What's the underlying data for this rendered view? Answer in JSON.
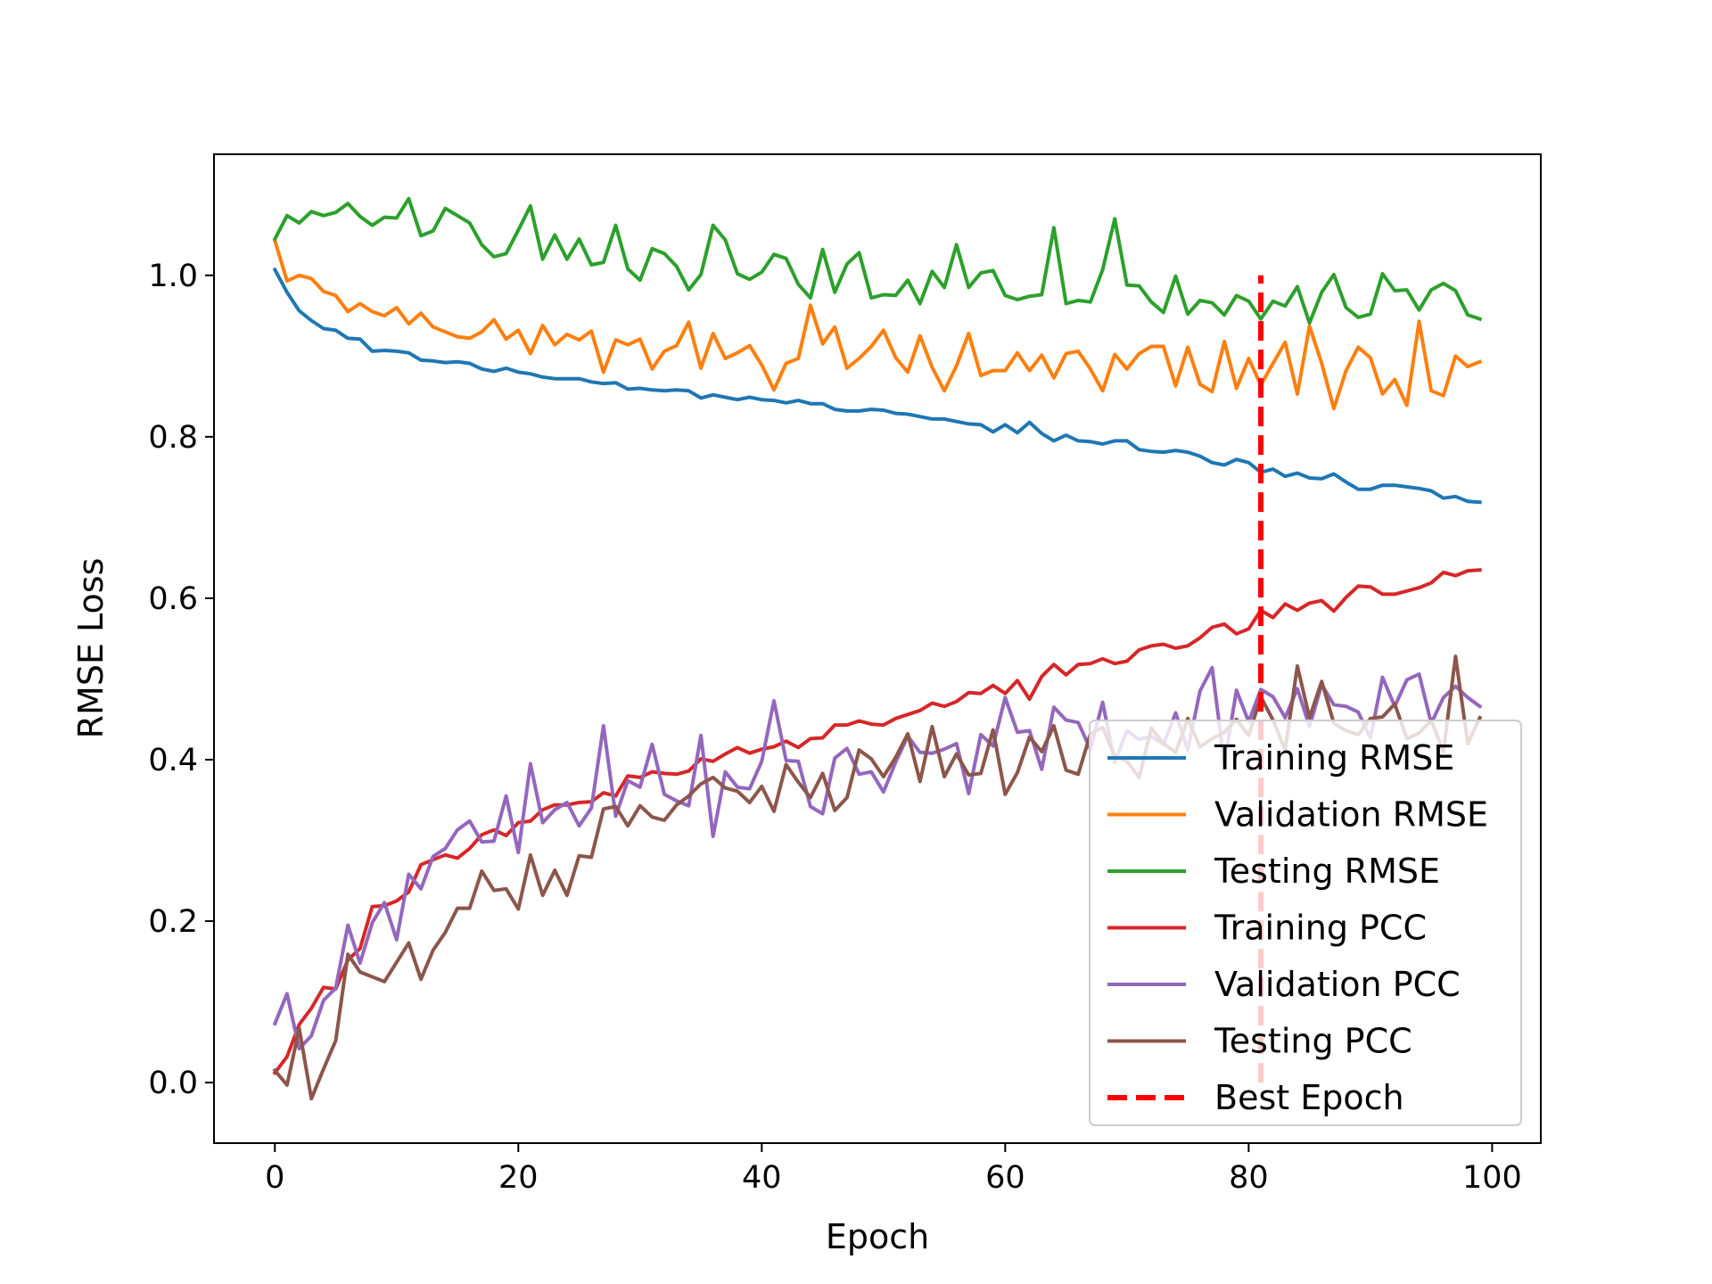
{
  "chart_data": {
    "type": "line",
    "title": "",
    "xlabel": "Epoch",
    "ylabel": "RMSE Loss",
    "xlim": [
      -5,
      104
    ],
    "ylim": [
      -0.075,
      1.15
    ],
    "xticks": [
      0,
      20,
      40,
      60,
      80,
      100
    ],
    "yticks": [
      0.0,
      0.2,
      0.4,
      0.6,
      0.8,
      1.0
    ],
    "grid": false,
    "legend_position": "lower-right",
    "best_epoch": 81,
    "best_epoch_label": "Best Epoch",
    "best_epoch_color": "#ff0000",
    "series": [
      {
        "name": "Training RMSE",
        "color": "#1f77b4",
        "values": [
          1.007,
          0.979,
          0.956,
          0.944,
          0.934,
          0.932,
          0.922,
          0.921,
          0.906,
          0.907,
          0.906,
          0.904,
          0.895,
          0.894,
          0.892,
          0.893,
          0.891,
          0.884,
          0.881,
          0.885,
          0.88,
          0.878,
          0.874,
          0.872,
          0.872,
          0.872,
          0.868,
          0.866,
          0.867,
          0.859,
          0.86,
          0.858,
          0.857,
          0.858,
          0.857,
          0.848,
          0.852,
          0.849,
          0.846,
          0.849,
          0.846,
          0.845,
          0.842,
          0.845,
          0.841,
          0.841,
          0.834,
          0.832,
          0.832,
          0.834,
          0.833,
          0.829,
          0.828,
          0.825,
          0.822,
          0.822,
          0.819,
          0.816,
          0.815,
          0.806,
          0.815,
          0.805,
          0.818,
          0.804,
          0.795,
          0.802,
          0.795,
          0.794,
          0.791,
          0.795,
          0.795,
          0.784,
          0.782,
          0.781,
          0.783,
          0.781,
          0.776,
          0.768,
          0.765,
          0.772,
          0.768,
          0.756,
          0.76,
          0.751,
          0.755,
          0.749,
          0.748,
          0.754,
          0.744,
          0.735,
          0.735,
          0.74,
          0.74,
          0.738,
          0.736,
          0.733,
          0.724,
          0.726,
          0.72,
          0.719
        ]
      },
      {
        "name": "Validation RMSE",
        "color": "#ff7f0e",
        "values": [
          1.043,
          0.993,
          1.0,
          0.996,
          0.98,
          0.975,
          0.955,
          0.965,
          0.955,
          0.95,
          0.96,
          0.94,
          0.953,
          0.936,
          0.93,
          0.924,
          0.922,
          0.93,
          0.945,
          0.921,
          0.932,
          0.903,
          0.938,
          0.914,
          0.927,
          0.92,
          0.931,
          0.88,
          0.92,
          0.914,
          0.921,
          0.884,
          0.906,
          0.913,
          0.942,
          0.885,
          0.928,
          0.897,
          0.904,
          0.913,
          0.889,
          0.858,
          0.891,
          0.897,
          0.963,
          0.915,
          0.936,
          0.885,
          0.897,
          0.912,
          0.932,
          0.898,
          0.88,
          0.925,
          0.886,
          0.857,
          0.888,
          0.928,
          0.876,
          0.882,
          0.882,
          0.904,
          0.882,
          0.901,
          0.873,
          0.903,
          0.906,
          0.884,
          0.857,
          0.902,
          0.884,
          0.903,
          0.912,
          0.912,
          0.863,
          0.911,
          0.865,
          0.856,
          0.918,
          0.86,
          0.897,
          0.864,
          0.891,
          0.917,
          0.853,
          0.937,
          0.891,
          0.835,
          0.882,
          0.911,
          0.898,
          0.853,
          0.871,
          0.839,
          0.943,
          0.857,
          0.851,
          0.9,
          0.887,
          0.893
        ]
      },
      {
        "name": "Testing RMSE",
        "color": "#2ca02c",
        "values": [
          1.045,
          1.074,
          1.065,
          1.079,
          1.074,
          1.078,
          1.089,
          1.073,
          1.062,
          1.072,
          1.071,
          1.095,
          1.049,
          1.055,
          1.083,
          1.074,
          1.065,
          1.038,
          1.023,
          1.027,
          1.056,
          1.086,
          1.02,
          1.05,
          1.02,
          1.045,
          1.013,
          1.016,
          1.062,
          1.008,
          0.994,
          1.033,
          1.027,
          1.011,
          0.982,
          1.001,
          1.062,
          1.044,
          1.002,
          0.995,
          1.004,
          1.026,
          1.021,
          0.989,
          0.972,
          1.032,
          0.979,
          1.014,
          1.028,
          0.972,
          0.976,
          0.975,
          0.994,
          0.965,
          1.005,
          0.985,
          1.038,
          0.985,
          1.003,
          1.006,
          0.975,
          0.97,
          0.974,
          0.976,
          1.059,
          0.965,
          0.969,
          0.967,
          1.007,
          1.07,
          0.988,
          0.987,
          0.967,
          0.954,
          0.999,
          0.952,
          0.969,
          0.966,
          0.951,
          0.975,
          0.968,
          0.946,
          0.968,
          0.962,
          0.986,
          0.941,
          0.979,
          1.001,
          0.96,
          0.948,
          0.952,
          1.002,
          0.981,
          0.982,
          0.957,
          0.982,
          0.99,
          0.981,
          0.951,
          0.946
        ]
      },
      {
        "name": "Training PCC",
        "color": "#d62728",
        "values": [
          0.012,
          0.032,
          0.072,
          0.092,
          0.118,
          0.116,
          0.152,
          0.166,
          0.218,
          0.219,
          0.225,
          0.236,
          0.27,
          0.276,
          0.282,
          0.278,
          0.29,
          0.307,
          0.313,
          0.306,
          0.322,
          0.324,
          0.338,
          0.344,
          0.344,
          0.347,
          0.348,
          0.359,
          0.355,
          0.38,
          0.378,
          0.385,
          0.383,
          0.382,
          0.386,
          0.401,
          0.398,
          0.407,
          0.415,
          0.408,
          0.413,
          0.416,
          0.423,
          0.415,
          0.426,
          0.427,
          0.443,
          0.443,
          0.448,
          0.444,
          0.443,
          0.451,
          0.456,
          0.461,
          0.47,
          0.466,
          0.472,
          0.483,
          0.482,
          0.492,
          0.482,
          0.498,
          0.475,
          0.503,
          0.518,
          0.505,
          0.518,
          0.519,
          0.525,
          0.519,
          0.522,
          0.536,
          0.541,
          0.543,
          0.538,
          0.541,
          0.551,
          0.564,
          0.568,
          0.556,
          0.562,
          0.585,
          0.576,
          0.593,
          0.585,
          0.594,
          0.597,
          0.584,
          0.601,
          0.615,
          0.614,
          0.605,
          0.605,
          0.609,
          0.613,
          0.619,
          0.632,
          0.628,
          0.634,
          0.635
        ]
      },
      {
        "name": "Validation PCC",
        "color": "#9467bd",
        "values": [
          0.073,
          0.11,
          0.042,
          0.058,
          0.102,
          0.117,
          0.195,
          0.148,
          0.198,
          0.223,
          0.177,
          0.258,
          0.24,
          0.28,
          0.29,
          0.313,
          0.324,
          0.298,
          0.299,
          0.355,
          0.285,
          0.395,
          0.322,
          0.338,
          0.347,
          0.318,
          0.34,
          0.442,
          0.33,
          0.374,
          0.366,
          0.419,
          0.357,
          0.349,
          0.343,
          0.43,
          0.305,
          0.385,
          0.366,
          0.364,
          0.398,
          0.473,
          0.399,
          0.398,
          0.342,
          0.333,
          0.402,
          0.414,
          0.382,
          0.385,
          0.36,
          0.397,
          0.429,
          0.409,
          0.408,
          0.413,
          0.42,
          0.358,
          0.431,
          0.417,
          0.477,
          0.434,
          0.436,
          0.388,
          0.465,
          0.449,
          0.446,
          0.413,
          0.471,
          0.397,
          0.436,
          0.425,
          0.429,
          0.419,
          0.458,
          0.412,
          0.485,
          0.514,
          0.395,
          0.486,
          0.447,
          0.487,
          0.478,
          0.452,
          0.488,
          0.441,
          0.493,
          0.468,
          0.466,
          0.459,
          0.427,
          0.502,
          0.466,
          0.499,
          0.506,
          0.445,
          0.477,
          0.491,
          0.477,
          0.466
        ]
      },
      {
        "name": "Testing PCC",
        "color": "#8c564b",
        "values": [
          0.015,
          -0.003,
          0.067,
          -0.02,
          0.017,
          0.052,
          0.159,
          0.137,
          0.131,
          0.125,
          0.149,
          0.173,
          0.128,
          0.164,
          0.186,
          0.216,
          0.216,
          0.262,
          0.238,
          0.24,
          0.215,
          0.282,
          0.232,
          0.263,
          0.232,
          0.281,
          0.279,
          0.339,
          0.342,
          0.318,
          0.343,
          0.329,
          0.325,
          0.344,
          0.355,
          0.37,
          0.378,
          0.365,
          0.361,
          0.347,
          0.367,
          0.336,
          0.394,
          0.372,
          0.353,
          0.383,
          0.337,
          0.353,
          0.412,
          0.401,
          0.379,
          0.403,
          0.432,
          0.373,
          0.441,
          0.379,
          0.407,
          0.381,
          0.383,
          0.437,
          0.357,
          0.384,
          0.428,
          0.41,
          0.442,
          0.387,
          0.382,
          0.432,
          0.44,
          0.404,
          0.398,
          0.378,
          0.439,
          0.42,
          0.409,
          0.451,
          0.416,
          0.426,
          0.434,
          0.45,
          0.43,
          0.478,
          0.449,
          0.412,
          0.516,
          0.452,
          0.497,
          0.445,
          0.436,
          0.431,
          0.451,
          0.453,
          0.469,
          0.426,
          0.433,
          0.449,
          0.41,
          0.528,
          0.42,
          0.452
        ]
      }
    ]
  }
}
